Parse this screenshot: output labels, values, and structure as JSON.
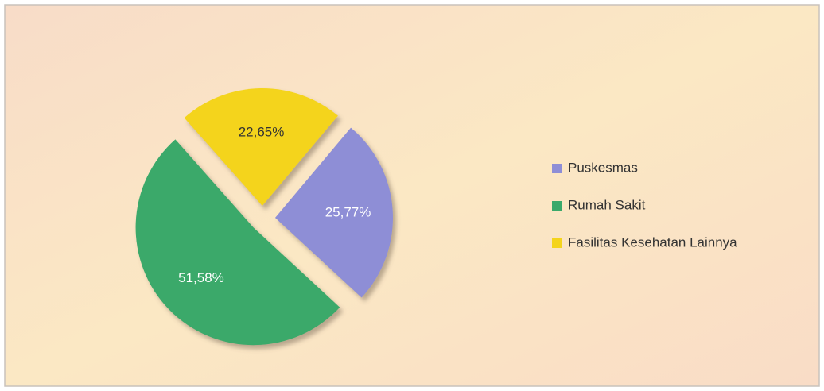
{
  "chart_data": {
    "type": "pie",
    "categories": [
      "Puskesmas",
      "Rumah Sakit",
      "Fasilitas Kesehatan Lainnya"
    ],
    "values": [
      25.77,
      51.58,
      22.65
    ],
    "value_labels": [
      "25,77%",
      "51,58%",
      "22,65%"
    ],
    "colors": [
      "#8e8ed6",
      "#3aa96b",
      "#f4d41c"
    ],
    "legend": "right"
  }
}
